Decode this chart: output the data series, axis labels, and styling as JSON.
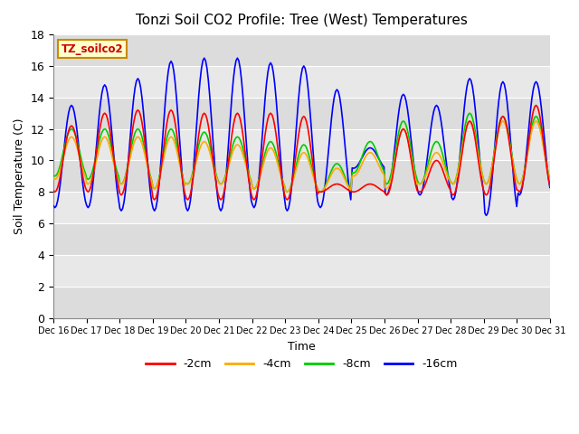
{
  "title": "Tonzi Soil CO2 Profile: Tree (West) Temperatures",
  "xlabel": "Time",
  "ylabel": "Soil Temperature (C)",
  "ylim": [
    0,
    18
  ],
  "yticks": [
    0,
    2,
    4,
    6,
    8,
    10,
    12,
    14,
    16,
    18
  ],
  "annotation_label": "TZ_soilco2",
  "annotation_color": "#cc0000",
  "annotation_bg": "#ffffcc",
  "annotation_border": "#cc8800",
  "colors": {
    "-2cm": "#ff0000",
    "-4cm": "#ffaa00",
    "-8cm": "#00cc00",
    "-16cm": "#0000ff"
  },
  "legend_labels": [
    "-2cm",
    "-4cm",
    "-8cm",
    "-16cm"
  ],
  "xtick_labels": [
    "Dec 16",
    "Dec 17",
    "Dec 18",
    "Dec 19",
    "Dec 20",
    "Dec 21",
    "Dec 22",
    "Dec 23",
    "Dec 24",
    "Dec 25",
    "Dec 26",
    "Dec 27",
    "Dec 28",
    "Dec 29",
    "Dec 30",
    "Dec 31"
  ],
  "band_colors": [
    "#dcdcdc",
    "#e8e8e8"
  ],
  "grid_color": "#ffffff",
  "num_days": 15,
  "pts_per_day": 24
}
